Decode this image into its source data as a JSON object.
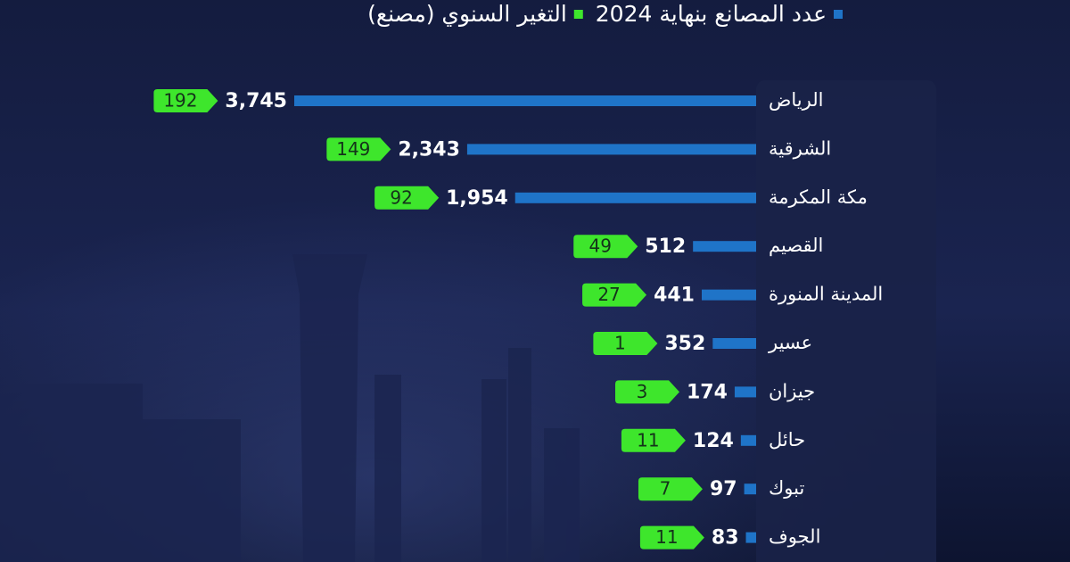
{
  "chart_data": {
    "type": "bar",
    "orientation": "horizontal",
    "categories": [
      "الرياض",
      "الشرقية",
      "مكة المكرمة",
      "القصيم",
      "المدينة المنورة",
      "عسير",
      "جيزان",
      "حائل",
      "تبوك",
      "الجوف"
    ],
    "series": [
      {
        "name": "عدد المصانع بنهاية 2024",
        "color": "#1f74c8",
        "values": [
          3745,
          2343,
          1954,
          512,
          441,
          352,
          174,
          124,
          97,
          83
        ],
        "value_labels": [
          "3,745",
          "2,343",
          "1,954",
          "512",
          "441",
          "352",
          "174",
          "124",
          "97",
          "83"
        ]
      },
      {
        "name": "التغير السنوي (مصنع)",
        "color": "#3ee62c",
        "values": [
          192,
          149,
          92,
          49,
          27,
          1,
          3,
          11,
          7,
          11
        ]
      }
    ]
  }
}
